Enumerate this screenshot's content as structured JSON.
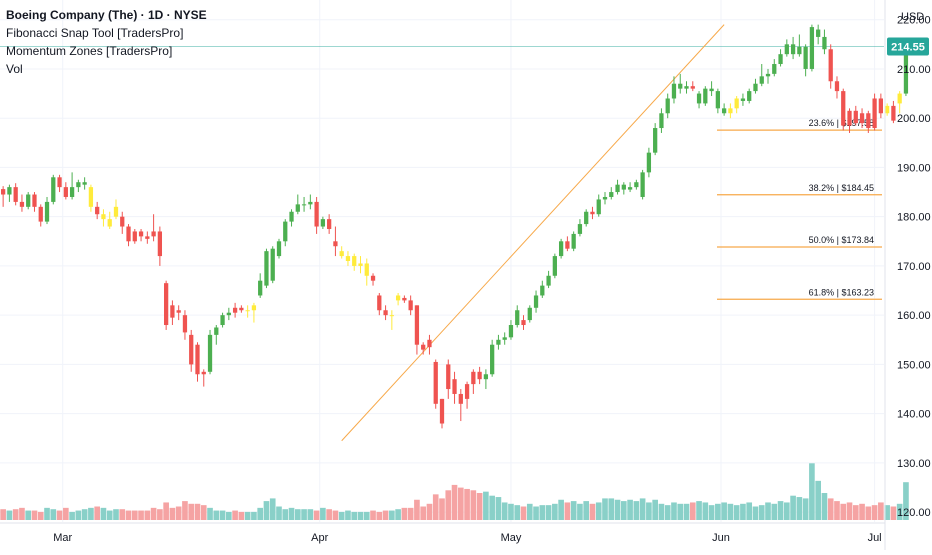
{
  "header": {
    "symbol": "Boeing Company (The) · 1D · NYSE",
    "indicators": [
      "Fibonacci Snap Tool [TradersPro]",
      "Momentum Zones [TradersPro]",
      "Vol"
    ]
  },
  "currency": "USD",
  "last_price_label": "214.55",
  "colors": {
    "up": "#4caf50",
    "down": "#ef5350",
    "neutral": "#ffeb3b",
    "vol_up": "#89d0c8",
    "vol_down": "#f5a3a3",
    "fib": "#f7a94a",
    "price_line": "#26a69a",
    "grid": "#f0f3fa"
  },
  "chart_data": {
    "type": "candlestick",
    "x_tick_labels": [
      "Mar",
      "Apr",
      "May",
      "Jun",
      "Jul"
    ],
    "y_tick_labels": [
      "220.00",
      "210.00",
      "200.00",
      "190.00",
      "180.00",
      "170.00",
      "160.00",
      "150.00",
      "140.00",
      "130.00",
      "120.00"
    ],
    "ylim": [
      118,
      224
    ],
    "x_tick_slots": [
      9.5,
      50.5,
      81,
      114.5,
      139
    ],
    "slot_range": [
      -0.5,
      140.5
    ],
    "candles": [
      [
        185.6,
        184.5,
        186.2,
        182.0,
        "d",
        8
      ],
      [
        184.5,
        186.0,
        186.5,
        183.0,
        "u",
        7
      ],
      [
        186.0,
        183.0,
        186.8,
        182.3,
        "d",
        8
      ],
      [
        183.0,
        182.0,
        184.5,
        181.0,
        "d",
        9
      ],
      [
        182.0,
        184.5,
        185.0,
        181.5,
        "u",
        7
      ],
      [
        184.5,
        182.0,
        185.0,
        181.0,
        "d",
        7
      ],
      [
        182.0,
        179.0,
        182.5,
        178.0,
        "d",
        6
      ],
      [
        179.0,
        183.0,
        184.0,
        178.5,
        "u",
        9
      ],
      [
        183.0,
        188.0,
        188.5,
        182.5,
        "u",
        8
      ],
      [
        188.0,
        186.0,
        188.5,
        185.0,
        "d",
        7
      ],
      [
        186.0,
        184.0,
        187.0,
        183.5,
        "d",
        9
      ],
      [
        184.0,
        186.0,
        189.0,
        183.5,
        "u",
        6
      ],
      [
        186.0,
        187.0,
        187.5,
        185.0,
        "u",
        7
      ],
      [
        187.0,
        186.5,
        188.0,
        185.5,
        "u",
        8
      ],
      [
        186.0,
        182.0,
        186.5,
        181.0,
        "n",
        9
      ],
      [
        182.0,
        180.5,
        183.0,
        179.5,
        "d",
        10
      ],
      [
        180.5,
        179.5,
        181.5,
        178.0,
        "n",
        9
      ],
      [
        179.5,
        178.0,
        181.0,
        177.5,
        "n",
        7
      ],
      [
        180.0,
        182.0,
        183.5,
        179.5,
        "n",
        8
      ],
      [
        180.0,
        178.0,
        181.0,
        176.5,
        "d",
        8
      ],
      [
        178.0,
        175.0,
        178.5,
        174.0,
        "d",
        7
      ],
      [
        175.0,
        177.0,
        177.5,
        174.5,
        "d",
        7
      ],
      [
        177.0,
        176.0,
        177.5,
        175.0,
        "d",
        7
      ],
      [
        176.0,
        175.5,
        177.0,
        174.5,
        "d",
        7
      ],
      [
        176.0,
        177.0,
        180.5,
        175.0,
        "d",
        9
      ],
      [
        177.0,
        172.0,
        178.0,
        170.0,
        "d",
        8
      ],
      [
        166.5,
        158.0,
        167.0,
        157.0,
        "d",
        13
      ],
      [
        162.0,
        159.5,
        163.0,
        158.0,
        "d",
        9
      ],
      [
        161.0,
        160.5,
        162.0,
        159.0,
        "d",
        10
      ],
      [
        160.0,
        156.5,
        161.0,
        155.0,
        "d",
        14
      ],
      [
        156.0,
        150.0,
        157.0,
        148.5,
        "d",
        12
      ],
      [
        154.0,
        148.0,
        154.5,
        146.5,
        "d",
        12
      ],
      [
        148.0,
        148.5,
        149.0,
        145.5,
        "d",
        11
      ],
      [
        148.5,
        156.0,
        157.0,
        148.0,
        "u",
        9
      ],
      [
        156.0,
        157.5,
        158.0,
        154.0,
        "u",
        7
      ],
      [
        158.0,
        160.0,
        160.5,
        157.5,
        "u",
        7
      ],
      [
        160.0,
        160.5,
        161.5,
        159.0,
        "u",
        6
      ],
      [
        160.5,
        161.5,
        162.5,
        159.5,
        "d",
        7
      ],
      [
        161.5,
        161.0,
        162.0,
        160.5,
        "d",
        6
      ],
      [
        161.0,
        161.0,
        162.0,
        159.5,
        "n",
        6
      ],
      [
        161.0,
        162.0,
        162.5,
        158.5,
        "n",
        6
      ],
      [
        164.0,
        167.0,
        168.5,
        163.5,
        "u",
        9
      ],
      [
        166.0,
        173.0,
        173.5,
        165.5,
        "u",
        14
      ],
      [
        167.0,
        173.5,
        174.0,
        166.5,
        "u",
        16
      ],
      [
        172.0,
        175.0,
        175.5,
        171.5,
        "u",
        10
      ],
      [
        175.0,
        179.0,
        179.5,
        174.0,
        "u",
        8
      ],
      [
        179.0,
        181.0,
        181.5,
        178.0,
        "u",
        9
      ],
      [
        181.0,
        182.5,
        184.5,
        180.5,
        "u",
        8
      ],
      [
        182.5,
        182.5,
        184.0,
        181.0,
        "u",
        8
      ],
      [
        182.5,
        183.0,
        184.5,
        181.5,
        "u",
        8
      ],
      [
        183.0,
        178.0,
        184.0,
        176.5,
        "d",
        7
      ],
      [
        178.0,
        179.5,
        180.0,
        177.5,
        "u",
        9
      ],
      [
        179.5,
        177.5,
        180.5,
        176.5,
        "d",
        8
      ],
      [
        175.0,
        174.0,
        178.0,
        172.0,
        "d",
        7
      ],
      [
        173.0,
        172.0,
        174.0,
        171.5,
        "n",
        6
      ],
      [
        172.0,
        171.0,
        173.0,
        170.0,
        "n",
        7
      ],
      [
        172.0,
        170.0,
        172.5,
        169.0,
        "n",
        6
      ],
      [
        170.0,
        170.5,
        172.0,
        168.5,
        "n",
        6
      ],
      [
        170.5,
        168.0,
        171.5,
        166.0,
        "n",
        6
      ],
      [
        168.0,
        167.0,
        168.5,
        166.0,
        "d",
        7
      ],
      [
        164.0,
        161.0,
        164.5,
        160.0,
        "d",
        6
      ],
      [
        161.0,
        160.0,
        162.0,
        159.0,
        "d",
        7
      ],
      [
        160.0,
        160.0,
        161.0,
        157.0,
        "n",
        7
      ],
      [
        163.0,
        164.0,
        164.5,
        162.0,
        "n",
        8
      ],
      [
        163.0,
        163.5,
        164.0,
        162.5,
        "d",
        9
      ],
      [
        163.0,
        161.0,
        164.0,
        160.0,
        "d",
        9
      ],
      [
        162.0,
        154.0,
        162.0,
        152.0,
        "d",
        15
      ],
      [
        154.0,
        153.0,
        154.5,
        152.0,
        "d",
        10
      ],
      [
        153.5,
        155.0,
        156.0,
        152.0,
        "d",
        12
      ],
      [
        150.5,
        142.0,
        151.0,
        141.0,
        "d",
        19
      ],
      [
        143.0,
        138.0,
        143.0,
        137.0,
        "d",
        16
      ],
      [
        145.0,
        150.0,
        151.0,
        143.0,
        "d",
        22
      ],
      [
        147.0,
        144.0,
        148.5,
        142.0,
        "d",
        26
      ],
      [
        144.0,
        142.0,
        145.0,
        138.5,
        "d",
        24
      ],
      [
        143.0,
        146.0,
        146.5,
        141.0,
        "d",
        23
      ],
      [
        146.0,
        148.5,
        149.0,
        144.0,
        "d",
        22
      ],
      [
        148.5,
        147.0,
        149.5,
        146.0,
        "d",
        20
      ],
      [
        147.0,
        148.0,
        149.0,
        145.0,
        "u",
        21
      ],
      [
        148.0,
        154.0,
        155.0,
        147.5,
        "u",
        18
      ],
      [
        154.0,
        155.0,
        156.0,
        153.0,
        "u",
        17
      ],
      [
        155.0,
        155.5,
        156.5,
        154.0,
        "u",
        13
      ],
      [
        155.5,
        158.0,
        159.0,
        155.0,
        "u",
        12
      ],
      [
        158.0,
        161.0,
        162.0,
        157.5,
        "u",
        11
      ],
      [
        158.0,
        159.0,
        160.0,
        157.0,
        "d",
        10
      ],
      [
        159.0,
        161.5,
        162.0,
        158.5,
        "u",
        12
      ],
      [
        161.5,
        164.0,
        165.0,
        160.5,
        "u",
        10
      ],
      [
        164.0,
        166.0,
        167.0,
        163.5,
        "u",
        11
      ],
      [
        166.0,
        168.0,
        169.0,
        165.5,
        "u",
        11
      ],
      [
        168.0,
        172.0,
        172.5,
        167.5,
        "u",
        12
      ],
      [
        172.0,
        175.0,
        175.5,
        171.5,
        "u",
        15
      ],
      [
        175.0,
        173.5,
        176.0,
        173.0,
        "d",
        13
      ],
      [
        173.5,
        176.5,
        177.0,
        173.0,
        "u",
        14
      ],
      [
        176.5,
        178.5,
        179.5,
        176.0,
        "u",
        12
      ],
      [
        178.5,
        181.0,
        181.5,
        178.0,
        "u",
        14
      ],
      [
        181.0,
        180.5,
        182.0,
        179.5,
        "d",
        12
      ],
      [
        180.5,
        183.5,
        184.5,
        180.0,
        "u",
        13
      ],
      [
        183.5,
        184.0,
        185.0,
        182.5,
        "u",
        16
      ],
      [
        184.0,
        185.0,
        186.0,
        183.5,
        "u",
        16
      ],
      [
        185.0,
        186.5,
        187.5,
        184.5,
        "u",
        15
      ],
      [
        186.5,
        185.5,
        187.0,
        184.5,
        "u",
        14
      ],
      [
        185.5,
        186.0,
        187.0,
        185.0,
        "u",
        15
      ],
      [
        186.0,
        187.0,
        187.5,
        185.5,
        "u",
        14
      ],
      [
        184.0,
        189.0,
        189.5,
        183.5,
        "u",
        16
      ],
      [
        189.0,
        193.0,
        194.0,
        188.0,
        "u",
        13
      ],
      [
        193.0,
        198.0,
        199.0,
        192.5,
        "u",
        15
      ],
      [
        198.0,
        201.0,
        202.0,
        197.0,
        "u",
        12
      ],
      [
        201.0,
        204.0,
        205.0,
        200.0,
        "u",
        11
      ],
      [
        204.0,
        207.0,
        208.5,
        203.0,
        "u",
        13
      ],
      [
        207.0,
        206.0,
        209.0,
        205.0,
        "u",
        12
      ],
      [
        206.0,
        206.5,
        207.5,
        205.0,
        "u",
        12
      ],
      [
        206.5,
        206.0,
        207.5,
        205.5,
        "d",
        13
      ],
      [
        205.0,
        203.0,
        205.5,
        202.0,
        "u",
        14
      ],
      [
        203.0,
        206.0,
        206.5,
        202.5,
        "u",
        13
      ],
      [
        206.0,
        205.5,
        207.5,
        204.5,
        "u",
        11
      ],
      [
        205.5,
        202.0,
        206.0,
        201.0,
        "u",
        12
      ],
      [
        202.0,
        201.0,
        203.0,
        200.5,
        "u",
        13
      ],
      [
        201.0,
        202.0,
        203.0,
        200.0,
        "n",
        12
      ],
      [
        202.0,
        204.0,
        204.5,
        201.0,
        "n",
        11
      ],
      [
        204.0,
        203.5,
        205.0,
        202.5,
        "u",
        12
      ],
      [
        203.5,
        205.5,
        206.0,
        203.0,
        "u",
        13
      ],
      [
        205.5,
        207.0,
        208.0,
        205.0,
        "u",
        10
      ],
      [
        207.0,
        208.5,
        211.0,
        206.5,
        "u",
        11
      ],
      [
        208.5,
        209.0,
        210.0,
        207.0,
        "u",
        13
      ],
      [
        209.0,
        211.0,
        212.0,
        208.5,
        "u",
        12
      ],
      [
        211.0,
        213.0,
        214.0,
        210.5,
        "u",
        14
      ],
      [
        213.0,
        215.0,
        216.0,
        212.5,
        "u",
        13
      ],
      [
        215.0,
        213.0,
        216.5,
        212.0,
        "u",
        18
      ],
      [
        213.0,
        214.5,
        217.0,
        212.5,
        "u",
        17
      ],
      [
        214.5,
        210.0,
        215.0,
        208.5,
        "u",
        16
      ],
      [
        210.0,
        218.5,
        219.0,
        209.5,
        "u",
        42
      ],
      [
        218.0,
        216.5,
        219.0,
        215.0,
        "u",
        29
      ],
      [
        216.5,
        214.0,
        218.0,
        213.0,
        "u",
        20
      ],
      [
        214.0,
        207.5,
        215.0,
        206.0,
        "d",
        16
      ],
      [
        207.5,
        205.5,
        208.5,
        204.0,
        "d",
        14
      ],
      [
        205.5,
        198.5,
        206.0,
        197.5,
        "d",
        12
      ],
      [
        198.5,
        201.5,
        202.0,
        197.0,
        "d",
        13
      ],
      [
        201.5,
        199.0,
        202.5,
        198.5,
        "d",
        11
      ],
      [
        199.0,
        201.0,
        202.0,
        198.0,
        "d",
        12
      ],
      [
        201.0,
        198.0,
        201.5,
        197.0,
        "d",
        10
      ],
      [
        198.0,
        204.0,
        205.0,
        197.5,
        "d",
        11
      ],
      [
        204.0,
        201.0,
        205.0,
        200.0,
        "d",
        13
      ],
      [
        201.0,
        202.5,
        203.0,
        200.5,
        "n",
        11
      ],
      [
        202.5,
        199.5,
        203.5,
        199.0,
        "d",
        10
      ],
      [
        203.0,
        205.0,
        205.5,
        201.0,
        "n",
        12
      ],
      [
        205.0,
        214.55,
        215.0,
        204.5,
        "u",
        28
      ]
    ],
    "fib_levels": [
      {
        "label": "23.6% | $197.58",
        "price": 197.58
      },
      {
        "label": "38.2% | $184.45",
        "price": 184.45
      },
      {
        "label": "50.0% | $173.84",
        "price": 173.84
      },
      {
        "label": "61.8% | $163.23",
        "price": 163.23
      }
    ],
    "fib_line": {
      "from": [
        54,
        134.5
      ],
      "to": [
        115,
        219
      ]
    },
    "last_price": 214.55,
    "volume_max": 100
  }
}
